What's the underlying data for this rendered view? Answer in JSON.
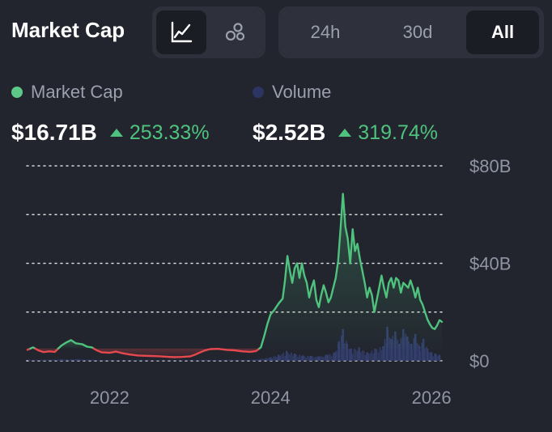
{
  "header": {
    "title": "Market Cap",
    "chart_type_buttons": [
      {
        "icon": "line-chart-icon",
        "active": true
      },
      {
        "icon": "bubbles-icon",
        "active": false
      }
    ],
    "ranges": [
      {
        "label": "24h",
        "active": false
      },
      {
        "label": "30d",
        "active": false
      },
      {
        "label": "All",
        "active": true
      }
    ]
  },
  "legend": {
    "market_cap": {
      "label": "Market Cap",
      "color": "#5dc887"
    },
    "volume": {
      "label": "Volume",
      "color": "#2c3561"
    }
  },
  "stats": {
    "market_cap": {
      "value": "$16.71B",
      "change": "253.33%"
    },
    "volume": {
      "value": "$2.52B",
      "change": "319.74%"
    }
  },
  "colors": {
    "up": "#4fc37d",
    "down": "#e5484d",
    "volume_bar": "#34406e",
    "grid": "#d8d8d8",
    "background": "#22242e"
  },
  "chart_data": {
    "type": "line",
    "title": "Market Cap",
    "x_ticks": [
      {
        "value": 2022,
        "label": "2022"
      },
      {
        "value": 2024,
        "label": "2024"
      },
      {
        "value": 2026,
        "label": "2026"
      }
    ],
    "y_ticks": [
      {
        "value": 0,
        "label": "$0"
      },
      {
        "value": 40,
        "label": "$40B"
      },
      {
        "value": 80,
        "label": "$80B"
      }
    ],
    "grid_values": [
      0,
      20,
      40,
      60,
      80
    ],
    "xlim": [
      2020.97,
      2026.15
    ],
    "ylim": [
      0,
      80
    ],
    "baseline": 5,
    "series": [
      {
        "name": "Market Cap ($B)",
        "points": [
          [
            2020.98,
            4.5
          ],
          [
            2021.05,
            5.5
          ],
          [
            2021.12,
            4.2
          ],
          [
            2021.18,
            3.6
          ],
          [
            2021.25,
            3.9
          ],
          [
            2021.32,
            3.7
          ],
          [
            2021.4,
            6.2
          ],
          [
            2021.46,
            7.5
          ],
          [
            2021.52,
            8.5
          ],
          [
            2021.58,
            7.2
          ],
          [
            2021.66,
            6.8
          ],
          [
            2021.72,
            5.8
          ],
          [
            2021.78,
            5.5
          ],
          [
            2021.84,
            4.3
          ],
          [
            2021.9,
            3.5
          ],
          [
            2022.0,
            3.3
          ],
          [
            2022.08,
            3.8
          ],
          [
            2022.15,
            3.2
          ],
          [
            2022.25,
            2.6
          ],
          [
            2022.35,
            2.2
          ],
          [
            2022.5,
            2.0
          ],
          [
            2022.6,
            1.9
          ],
          [
            2022.7,
            1.7
          ],
          [
            2022.8,
            1.5
          ],
          [
            2022.9,
            1.6
          ],
          [
            2023.0,
            1.8
          ],
          [
            2023.06,
            2.5
          ],
          [
            2023.12,
            3.4
          ],
          [
            2023.18,
            4.2
          ],
          [
            2023.25,
            4.8
          ],
          [
            2023.35,
            4.9
          ],
          [
            2023.45,
            4.5
          ],
          [
            2023.55,
            4.3
          ],
          [
            2023.65,
            3.9
          ],
          [
            2023.75,
            3.7
          ],
          [
            2023.82,
            4.0
          ],
          [
            2023.88,
            5.5
          ],
          [
            2023.92,
            10.0
          ],
          [
            2023.96,
            15.0
          ],
          [
            2024.0,
            19.0
          ],
          [
            2024.05,
            21.0
          ],
          [
            2024.1,
            23.5
          ],
          [
            2024.15,
            25.5
          ],
          [
            2024.18,
            33.0
          ],
          [
            2024.21,
            43.0
          ],
          [
            2024.24,
            37.0
          ],
          [
            2024.27,
            32.0
          ],
          [
            2024.3,
            38.0
          ],
          [
            2024.33,
            40.0
          ],
          [
            2024.36,
            34.0
          ],
          [
            2024.39,
            40.0
          ],
          [
            2024.42,
            35.0
          ],
          [
            2024.45,
            32.0
          ],
          [
            2024.48,
            26.0
          ],
          [
            2024.51,
            30.0
          ],
          [
            2024.54,
            33.0
          ],
          [
            2024.57,
            25.0
          ],
          [
            2024.6,
            22.0
          ],
          [
            2024.63,
            27.0
          ],
          [
            2024.66,
            31.0
          ],
          [
            2024.69,
            28.0
          ],
          [
            2024.72,
            24.0
          ],
          [
            2024.75,
            26.0
          ],
          [
            2024.78,
            30.0
          ],
          [
            2024.81,
            34.0
          ],
          [
            2024.84,
            41.0
          ],
          [
            2024.87,
            54.0
          ],
          [
            2024.9,
            68.5
          ],
          [
            2024.93,
            55.0
          ],
          [
            2024.96,
            50.0
          ],
          [
            2024.99,
            40.0
          ],
          [
            2025.02,
            54.0
          ],
          [
            2025.05,
            45.0
          ],
          [
            2025.08,
            48.0
          ],
          [
            2025.11,
            42.0
          ],
          [
            2025.14,
            37.0
          ],
          [
            2025.17,
            32.0
          ],
          [
            2025.2,
            26.0
          ],
          [
            2025.23,
            30.0
          ],
          [
            2025.26,
            27.0
          ],
          [
            2025.29,
            20.0
          ],
          [
            2025.32,
            25.0
          ],
          [
            2025.35,
            30.0
          ],
          [
            2025.38,
            35.0
          ],
          [
            2025.41,
            30.0
          ],
          [
            2025.44,
            26.0
          ],
          [
            2025.47,
            32.0
          ],
          [
            2025.5,
            34.0
          ],
          [
            2025.53,
            30.0
          ],
          [
            2025.56,
            34.0
          ],
          [
            2025.59,
            33.0
          ],
          [
            2025.62,
            28.0
          ],
          [
            2025.65,
            32.0
          ],
          [
            2025.68,
            31.0
          ],
          [
            2025.71,
            30.0
          ],
          [
            2025.74,
            33.0
          ],
          [
            2025.77,
            30.0
          ],
          [
            2025.8,
            26.0
          ],
          [
            2025.83,
            30.0
          ],
          [
            2025.86,
            25.0
          ],
          [
            2025.89,
            23.0
          ],
          [
            2025.92,
            20.0
          ],
          [
            2025.95,
            17.0
          ],
          [
            2025.98,
            15.0
          ],
          [
            2026.01,
            13.5
          ],
          [
            2026.04,
            13.0
          ],
          [
            2026.07,
            14.5
          ],
          [
            2026.1,
            16.7
          ],
          [
            2026.13,
            16.0
          ]
        ]
      },
      {
        "name": "Volume ($B)",
        "points": [
          [
            2021.0,
            0.4
          ],
          [
            2021.2,
            0.5
          ],
          [
            2021.4,
            0.6
          ],
          [
            2021.6,
            0.7
          ],
          [
            2021.8,
            0.4
          ],
          [
            2022.0,
            0.3
          ],
          [
            2022.3,
            0.3
          ],
          [
            2022.6,
            0.2
          ],
          [
            2022.9,
            0.2
          ],
          [
            2023.2,
            0.4
          ],
          [
            2023.5,
            0.4
          ],
          [
            2023.8,
            0.5
          ],
          [
            2024.0,
            1.5
          ],
          [
            2024.1,
            2.5
          ],
          [
            2024.2,
            4.0
          ],
          [
            2024.3,
            3.0
          ],
          [
            2024.4,
            2.2
          ],
          [
            2024.5,
            2.0
          ],
          [
            2024.6,
            1.8
          ],
          [
            2024.7,
            2.5
          ],
          [
            2024.8,
            3.5
          ],
          [
            2024.85,
            8.0
          ],
          [
            2024.9,
            13.0
          ],
          [
            2024.95,
            7.0
          ],
          [
            2025.0,
            5.0
          ],
          [
            2025.1,
            5.5
          ],
          [
            2025.2,
            3.5
          ],
          [
            2025.3,
            5.0
          ],
          [
            2025.4,
            6.0
          ],
          [
            2025.45,
            14.0
          ],
          [
            2025.5,
            9.0
          ],
          [
            2025.55,
            12.0
          ],
          [
            2025.6,
            7.0
          ],
          [
            2025.65,
            13.0
          ],
          [
            2025.7,
            10.0
          ],
          [
            2025.75,
            7.0
          ],
          [
            2025.8,
            11.0
          ],
          [
            2025.85,
            6.0
          ],
          [
            2025.9,
            9.0
          ],
          [
            2025.95,
            5.0
          ],
          [
            2026.0,
            3.5
          ],
          [
            2026.05,
            3.0
          ],
          [
            2026.1,
            2.5
          ]
        ]
      }
    ]
  }
}
